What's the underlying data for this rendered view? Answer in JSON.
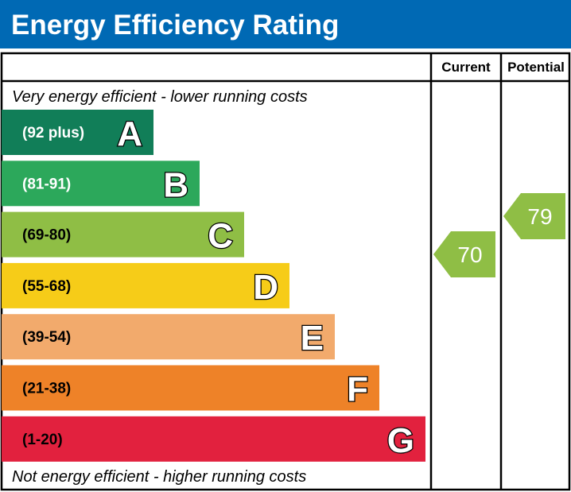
{
  "title": "Energy Efficiency Rating",
  "colors": {
    "header": "#0069b4",
    "frame": "#000000"
  },
  "chart_data": {
    "type": "bar",
    "columns": [
      "Current",
      "Potential"
    ],
    "top_note": "Very energy efficient - lower running costs",
    "bottom_note": "Not energy efficient - higher running costs",
    "bands": [
      {
        "letter": "A",
        "range": "(92 plus)",
        "color": "#117e58",
        "text_color": "#ffffff"
      },
      {
        "letter": "B",
        "range": "(81-91)",
        "color": "#2ca85b",
        "text_color": "#ffffff"
      },
      {
        "letter": "C",
        "range": "(69-80)",
        "color": "#8fbe45",
        "text_color": "#000000"
      },
      {
        "letter": "D",
        "range": "(55-68)",
        "color": "#f6cc18",
        "text_color": "#000000"
      },
      {
        "letter": "E",
        "range": "(39-54)",
        "color": "#f2aa6c",
        "text_color": "#000000"
      },
      {
        "letter": "F",
        "range": "(21-38)",
        "color": "#ee8228",
        "text_color": "#000000"
      },
      {
        "letter": "G",
        "range": "(1-20)",
        "color": "#e2213e",
        "text_color": "#000000"
      }
    ],
    "current": {
      "value": "70",
      "band": "C",
      "color": "#8fbe45"
    },
    "potential": {
      "value": "79",
      "band": "C",
      "color": "#8fbe45"
    }
  }
}
